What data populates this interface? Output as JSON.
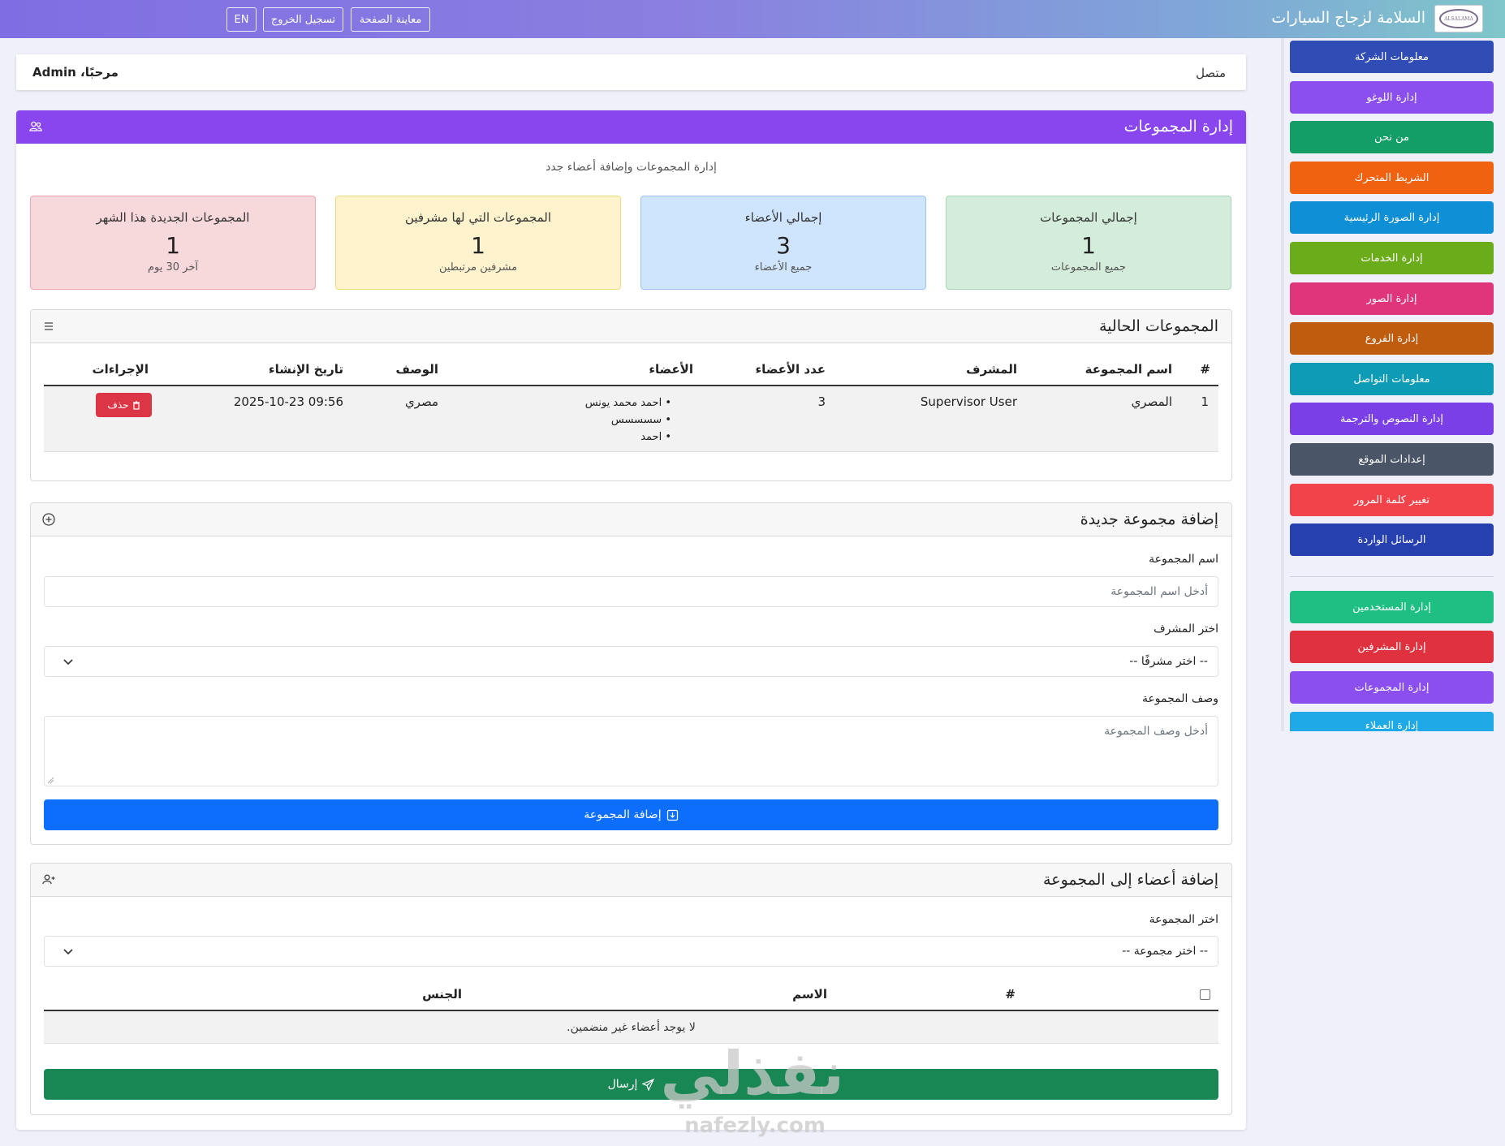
{
  "topbar": {
    "brand": "السلامة لزجاج السيارات",
    "logo_text": "ALSALAMA",
    "preview_label": "معاينة الصفحة",
    "logout_label": "تسجيل الخروج",
    "lang_label": "EN"
  },
  "welcome": {
    "status": "متصل",
    "greeting": "مرحبًا، Admin"
  },
  "sidebar": {
    "items": [
      {
        "label": "معلومات الشركة",
        "color": "#2f4db5"
      },
      {
        "label": "إدارة اللوغو",
        "color": "#8b4ff0"
      },
      {
        "label": "من نحن",
        "color": "#129e66"
      },
      {
        "label": "الشريط المتحرك",
        "color": "#f0620f"
      },
      {
        "label": "إدارة الصورة الرئيسية",
        "color": "#0e8fd6"
      },
      {
        "label": "إدارة الخدمات",
        "color": "#6aac1a"
      },
      {
        "label": "إدارة الصور",
        "color": "#e0347b"
      },
      {
        "label": "إدارة الفروع",
        "color": "#c05c0e"
      },
      {
        "label": "معلومات التواصل",
        "color": "#0e9bb5"
      },
      {
        "label": "إدارة النصوص والترجمة",
        "color": "#7a3fe6"
      },
      {
        "label": "إعدادات الموقع",
        "color": "#4a5568"
      },
      {
        "label": "تغيير كلمة المرور",
        "color": "#f2424a"
      },
      {
        "label": "الرسائل الواردة",
        "color": "#2740b0"
      },
      {
        "label": "إدارة المستخدمين",
        "color": "#1fbf83"
      },
      {
        "label": "إدارة المشرفين",
        "color": "#e0323e"
      },
      {
        "label": "إدارة المجموعات",
        "color": "#8b4ff0"
      },
      {
        "label": "إدارة العملاء",
        "color": "#1fa9e6"
      }
    ]
  },
  "main": {
    "title": "إدارة المجموعات",
    "subtitle": "إدارة المجموعات وإضافة أعضاء جدد",
    "stats": [
      {
        "title": "إجمالي المجموعات",
        "value": "1",
        "note": "جميع المجموعات",
        "bg": "#d4eddb",
        "border": "#a8d8b6"
      },
      {
        "title": "إجمالي الأعضاء",
        "value": "3",
        "note": "جميع الأعضاء",
        "bg": "#cfe4fd",
        "border": "#9cc6ef"
      },
      {
        "title": "المجموعات التي لها مشرفين",
        "value": "1",
        "note": "مشرفين مرتبطين",
        "bg": "#fef3cd",
        "border": "#f3d97e"
      },
      {
        "title": "المجموعات الجديدة هذا الشهر",
        "value": "1",
        "note": "آخر 30 يوم",
        "bg": "#f7d8db",
        "border": "#e8a9b1"
      }
    ]
  },
  "groups_table": {
    "title": "المجموعات الحالية",
    "headers": {
      "num": "#",
      "name": "اسم المجموعة",
      "supervisor": "المشرف",
      "count": "عدد الأعضاء",
      "members": "الأعضاء",
      "description": "الوصف",
      "created": "تاريخ الإنشاء",
      "actions": "الإجراءات"
    },
    "rows": [
      {
        "num": "1",
        "name": "المصري",
        "supervisor": "Supervisor User",
        "count": "3",
        "members": [
          "احمد محمد يونس",
          "سسسسس",
          "احمد"
        ],
        "description": "مصري",
        "created": "2025-10-23 09:56",
        "delete_label": "حذف"
      }
    ]
  },
  "add_group": {
    "title": "إضافة مجموعة جديدة",
    "name_label": "اسم المجموعة",
    "name_placeholder": "أدخل اسم المجموعة",
    "supervisor_label": "اختر المشرف",
    "supervisor_selected": "-- اختر مشرفًا --",
    "desc_label": "وصف المجموعة",
    "desc_placeholder": "أدخل وصف المجموعة",
    "submit_label": "إضافة المجموعة"
  },
  "add_members": {
    "title": "إضافة أعضاء إلى المجموعة",
    "group_label": "اختر المجموعة",
    "group_selected": "-- اختر مجموعة --",
    "headers": {
      "num": "#",
      "name": "الاسم",
      "gender": "الجنس"
    },
    "empty_text": "لا يوجد أعضاء غير منضمين.",
    "submit_label": "إرسال"
  },
  "watermark": {
    "arabic": "نفذلي",
    "latin": "nafezly.com"
  }
}
